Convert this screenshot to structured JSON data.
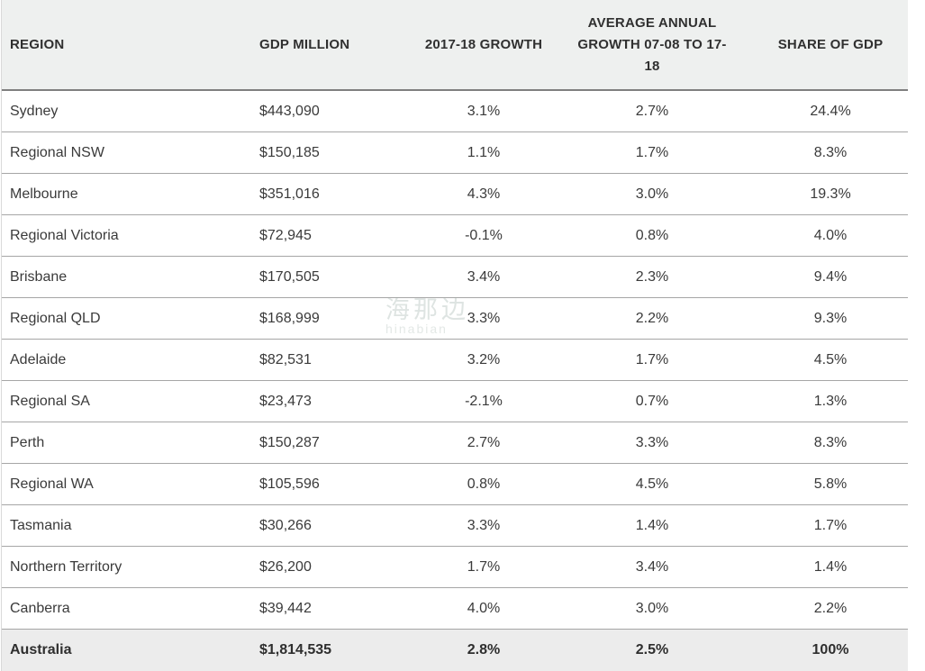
{
  "table": {
    "columns": [
      {
        "label": "REGION",
        "align": "left"
      },
      {
        "label": "GDP MILLION",
        "align": "left"
      },
      {
        "label": "2017-18 GROWTH",
        "align": "center"
      },
      {
        "label": "AVERAGE ANNUAL GROWTH 07-08 TO 17-18",
        "align": "center"
      },
      {
        "label": "SHARE OF GDP",
        "align": "center"
      }
    ],
    "rows": [
      [
        "Sydney",
        "$443,090",
        "3.1%",
        "2.7%",
        "24.4%"
      ],
      [
        "Regional NSW",
        "$150,185",
        "1.1%",
        "1.7%",
        "8.3%"
      ],
      [
        "Melbourne",
        "$351,016",
        "4.3%",
        "3.0%",
        "19.3%"
      ],
      [
        "Regional Victoria",
        "$72,945",
        "-0.1%",
        "0.8%",
        "4.0%"
      ],
      [
        "Brisbane",
        "$170,505",
        "3.4%",
        "2.3%",
        "9.4%"
      ],
      [
        "Regional QLD",
        "$168,999",
        "3.3%",
        "2.2%",
        "9.3%"
      ],
      [
        "Adelaide",
        "$82,531",
        "3.2%",
        "1.7%",
        "4.5%"
      ],
      [
        "Regional SA",
        "$23,473",
        "-2.1%",
        "0.7%",
        "1.3%"
      ],
      [
        "Perth",
        "$150,287",
        "2.7%",
        "3.3%",
        "8.3%"
      ],
      [
        "Regional WA",
        "$105,596",
        "0.8%",
        "4.5%",
        "5.8%"
      ],
      [
        "Tasmania",
        "$30,266",
        "3.3%",
        "1.4%",
        "1.7%"
      ],
      [
        "Northern Territory",
        "$26,200",
        "1.7%",
        "3.4%",
        "1.4%"
      ],
      [
        "Canberra",
        "$39,442",
        "4.0%",
        "3.0%",
        "2.2%"
      ]
    ],
    "total_row": [
      "Australia",
      "$1,814,535",
      "2.8%",
      "2.5%",
      "100%"
    ]
  },
  "watermark": {
    "line1": "海那边",
    "line2": "hinabian"
  },
  "colors": {
    "header_bg": "#eef0ef",
    "total_row_bg": "#ececec",
    "row_border": "#a6a6a6",
    "header_border": "#7f7f7f",
    "body_text": "#3a3a3a"
  },
  "chart_data": {
    "type": "table",
    "title": "",
    "columns": [
      "REGION",
      "GDP MILLION",
      "2017-18 GROWTH",
      "AVERAGE ANNUAL GROWTH 07-08 TO 17-18",
      "SHARE OF GDP"
    ],
    "rows": [
      [
        "Sydney",
        443090,
        3.1,
        2.7,
        24.4
      ],
      [
        "Regional NSW",
        150185,
        1.1,
        1.7,
        8.3
      ],
      [
        "Melbourne",
        351016,
        4.3,
        3.0,
        19.3
      ],
      [
        "Regional Victoria",
        72945,
        -0.1,
        0.8,
        4.0
      ],
      [
        "Brisbane",
        170505,
        3.4,
        2.3,
        9.4
      ],
      [
        "Regional QLD",
        168999,
        3.3,
        2.2,
        9.3
      ],
      [
        "Adelaide",
        82531,
        3.2,
        1.7,
        4.5
      ],
      [
        "Regional SA",
        23473,
        -2.1,
        0.7,
        1.3
      ],
      [
        "Perth",
        150287,
        2.7,
        3.3,
        8.3
      ],
      [
        "Regional WA",
        105596,
        0.8,
        4.5,
        5.8
      ],
      [
        "Tasmania",
        30266,
        3.3,
        1.4,
        1.7
      ],
      [
        "Northern Territory",
        26200,
        1.7,
        3.4,
        1.4
      ],
      [
        "Canberra",
        39442,
        4.0,
        3.0,
        2.2
      ],
      [
        "Australia",
        1814535,
        2.8,
        2.5,
        100
      ]
    ],
    "units": {
      "GDP MILLION": "AUD $M",
      "growth_columns": "percent"
    }
  }
}
